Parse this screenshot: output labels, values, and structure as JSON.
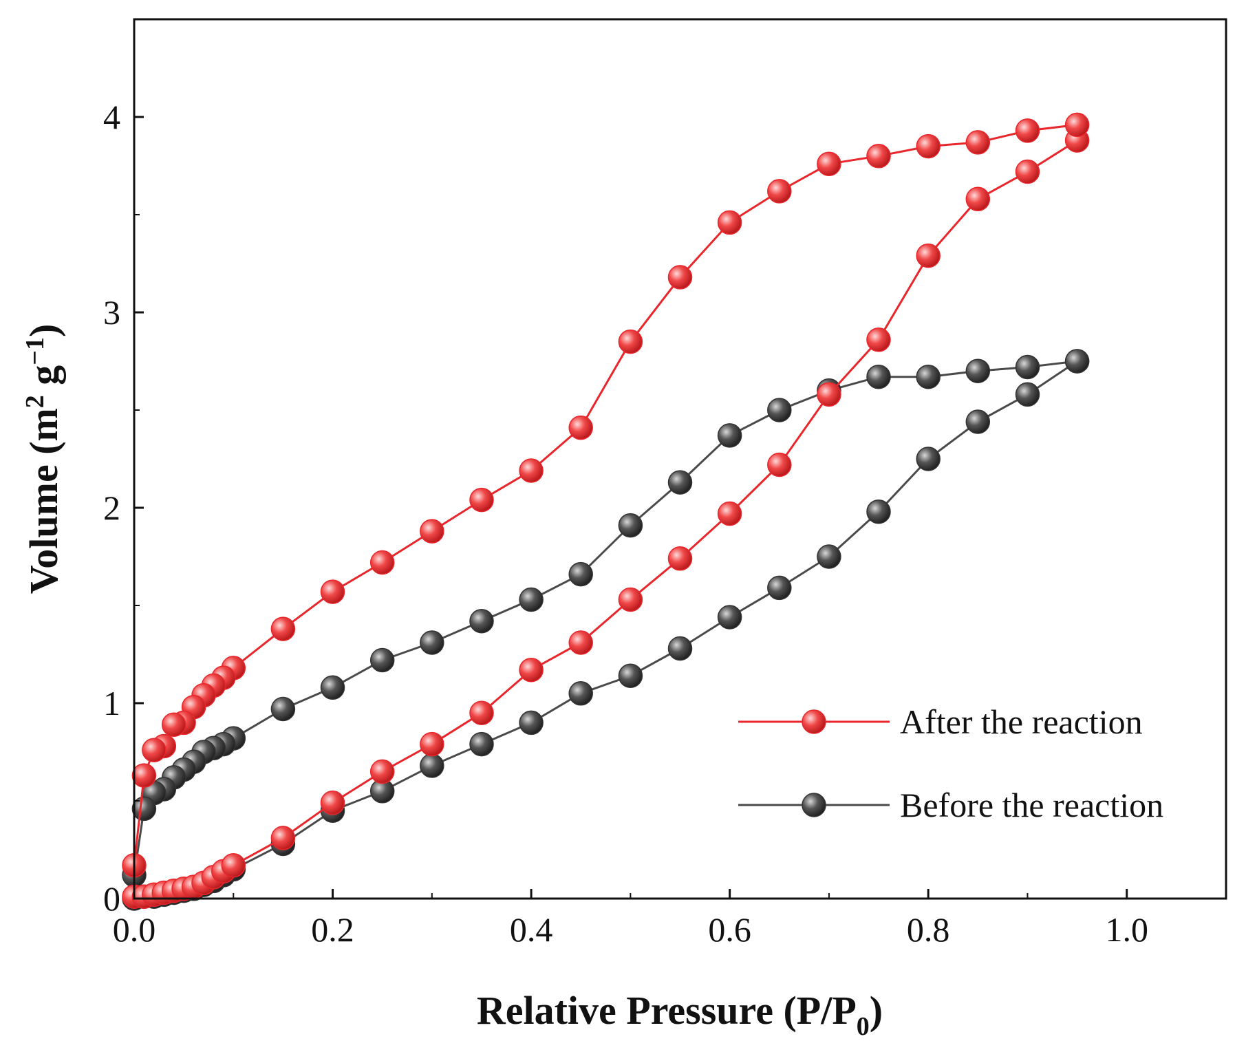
{
  "chart_data": {
    "type": "line",
    "title": "",
    "xlabel": "Relative Pressure (P/P",
    "xlabel_sub": "0",
    "xlabel_end": ")",
    "ylabel": "Volume (m",
    "ylabel_sup1": "2",
    "ylabel_mid": " g",
    "ylabel_sup2": "−1",
    "ylabel_end": ")",
    "xlim": [
      0,
      1.1
    ],
    "ylim": [
      0,
      4.5
    ],
    "xticks": [
      0.0,
      0.2,
      0.4,
      0.6,
      0.8,
      1.0
    ],
    "xtick_labels": [
      "0.0",
      "0.2",
      "0.4",
      "0.6",
      "0.8",
      "1.0"
    ],
    "yticks": [
      0,
      1,
      2,
      3,
      4
    ],
    "ytick_labels": [
      "0",
      "1",
      "2",
      "3",
      "4"
    ],
    "legend_position": "lower-right",
    "series": [
      {
        "name": "After the reaction",
        "color": "#e8262b",
        "x": [
          0.0,
          0.01,
          0.02,
          0.03,
          0.04,
          0.05,
          0.06,
          0.07,
          0.08,
          0.09,
          0.1,
          0.15,
          0.2,
          0.25,
          0.3,
          0.35,
          0.4,
          0.45,
          0.5,
          0.55,
          0.6,
          0.65,
          0.7,
          0.75,
          0.8,
          0.85,
          0.9,
          0.95,
          0.95,
          0.9,
          0.85,
          0.8,
          0.75,
          0.7,
          0.65,
          0.6,
          0.55,
          0.5,
          0.45,
          0.4,
          0.35,
          0.3,
          0.25,
          0.2,
          0.15,
          0.1,
          0.09,
          0.08,
          0.07,
          0.06,
          0.05,
          0.04,
          0.03,
          0.02,
          0.01,
          0.0
        ],
        "y": [
          0.01,
          0.01,
          0.02,
          0.03,
          0.04,
          0.05,
          0.06,
          0.08,
          0.11,
          0.14,
          0.17,
          0.31,
          0.49,
          0.65,
          0.79,
          0.95,
          1.17,
          1.31,
          1.53,
          1.74,
          1.97,
          2.22,
          2.58,
          2.86,
          3.29,
          3.58,
          3.72,
          3.88,
          3.96,
          3.93,
          3.87,
          3.85,
          3.8,
          3.76,
          3.62,
          3.46,
          3.18,
          2.85,
          2.41,
          2.19,
          2.04,
          1.88,
          1.72,
          1.57,
          1.38,
          1.18,
          1.13,
          1.09,
          1.04,
          0.98,
          0.9,
          0.89,
          0.78,
          0.76,
          0.63,
          0.17
        ]
      },
      {
        "name": "Before the reaction",
        "color": "#4a4a4a",
        "x": [
          0.0,
          0.01,
          0.02,
          0.03,
          0.04,
          0.05,
          0.06,
          0.07,
          0.08,
          0.09,
          0.1,
          0.15,
          0.2,
          0.25,
          0.3,
          0.35,
          0.4,
          0.45,
          0.5,
          0.55,
          0.6,
          0.65,
          0.7,
          0.75,
          0.8,
          0.85,
          0.9,
          0.95,
          0.95,
          0.9,
          0.85,
          0.8,
          0.75,
          0.7,
          0.65,
          0.6,
          0.55,
          0.5,
          0.45,
          0.4,
          0.35,
          0.3,
          0.25,
          0.2,
          0.15,
          0.1,
          0.09,
          0.08,
          0.07,
          0.06,
          0.05,
          0.04,
          0.03,
          0.02,
          0.01,
          0.0
        ],
        "y": [
          0.0,
          0.01,
          0.01,
          0.02,
          0.03,
          0.04,
          0.05,
          0.07,
          0.09,
          0.12,
          0.15,
          0.28,
          0.45,
          0.55,
          0.68,
          0.79,
          0.9,
          1.05,
          1.14,
          1.28,
          1.44,
          1.59,
          1.75,
          1.98,
          2.25,
          2.44,
          2.58,
          2.75,
          2.75,
          2.72,
          2.7,
          2.67,
          2.67,
          2.6,
          2.5,
          2.37,
          2.13,
          1.91,
          1.66,
          1.53,
          1.42,
          1.31,
          1.22,
          1.08,
          0.97,
          0.82,
          0.79,
          0.77,
          0.75,
          0.7,
          0.66,
          0.62,
          0.56,
          0.54,
          0.46,
          0.12
        ]
      }
    ]
  }
}
